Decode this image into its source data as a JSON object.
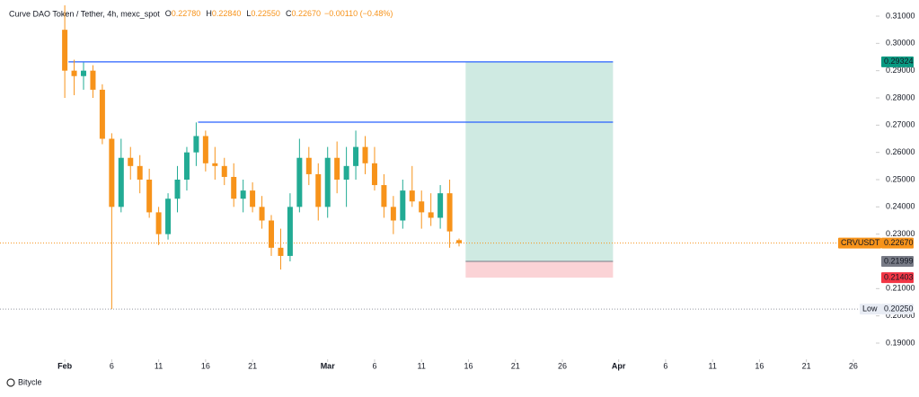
{
  "chart_data": {
    "type": "candlestick",
    "title": "Curve DAO Token / Tether, 4h, mexc_spot",
    "header_ohlc": {
      "labels": [
        "O",
        "H",
        "L",
        "C"
      ],
      "value_labels": [
        "0.22780",
        "0.22840",
        "0.22550",
        "0.22670"
      ],
      "values": [
        0.2278,
        0.2284,
        0.2255,
        0.2267
      ]
    },
    "change_label": "−0.00110 (−0.48%)",
    "up_color": "#22ab94",
    "down_color": "#f7931a",
    "x": [
      0,
      1,
      2,
      3,
      4,
      5,
      6,
      7,
      8,
      9,
      10,
      11,
      12,
      13,
      14,
      15,
      16,
      17,
      18,
      19,
      20,
      21,
      22,
      23,
      24,
      25,
      26,
      27,
      28,
      29,
      30,
      31,
      32,
      33,
      34,
      35,
      36,
      37,
      38,
      39,
      40,
      41,
      42
    ],
    "open": [
      0.305,
      0.29,
      0.288,
      0.29,
      0.283,
      0.265,
      0.24,
      0.258,
      0.255,
      0.25,
      0.238,
      0.23,
      0.243,
      0.25,
      0.26,
      0.266,
      0.256,
      0.255,
      0.251,
      0.243,
      0.246,
      0.24,
      0.235,
      0.225,
      0.222,
      0.24,
      0.258,
      0.252,
      0.24,
      0.258,
      0.25,
      0.255,
      0.262,
      0.256,
      0.248,
      0.24,
      0.235,
      0.246,
      0.242,
      0.238,
      0.236,
      0.245,
      0.2278
    ],
    "high": [
      0.314,
      0.294,
      0.293,
      0.292,
      0.285,
      0.267,
      0.265,
      0.262,
      0.259,
      0.254,
      0.24,
      0.245,
      0.255,
      0.262,
      0.271,
      0.268,
      0.262,
      0.258,
      0.256,
      0.25,
      0.249,
      0.244,
      0.237,
      0.232,
      0.245,
      0.265,
      0.262,
      0.256,
      0.262,
      0.264,
      0.262,
      0.268,
      0.266,
      0.262,
      0.252,
      0.244,
      0.25,
      0.255,
      0.246,
      0.245,
      0.248,
      0.25,
      0.2284
    ],
    "low": [
      0.28,
      0.281,
      0.283,
      0.28,
      0.263,
      0.2025,
      0.238,
      0.25,
      0.245,
      0.236,
      0.226,
      0.228,
      0.238,
      0.246,
      0.255,
      0.253,
      0.25,
      0.248,
      0.24,
      0.238,
      0.238,
      0.232,
      0.222,
      0.217,
      0.22,
      0.238,
      0.248,
      0.235,
      0.236,
      0.245,
      0.24,
      0.25,
      0.252,
      0.246,
      0.236,
      0.23,
      0.232,
      0.24,
      0.232,
      0.233,
      0.232,
      0.225,
      0.2255
    ],
    "close": [
      0.29,
      0.288,
      0.29,
      0.283,
      0.265,
      0.24,
      0.258,
      0.255,
      0.25,
      0.238,
      0.23,
      0.243,
      0.25,
      0.26,
      0.266,
      0.256,
      0.255,
      0.251,
      0.243,
      0.246,
      0.24,
      0.235,
      0.225,
      0.222,
      0.24,
      0.258,
      0.252,
      0.24,
      0.258,
      0.25,
      0.255,
      0.262,
      0.256,
      0.248,
      0.24,
      0.235,
      0.246,
      0.242,
      0.238,
      0.236,
      0.245,
      0.231,
      0.2267
    ],
    "xlim": [
      -6.9,
      86.4
    ],
    "ylim": [
      0.19,
      0.31
    ],
    "xticks": [
      {
        "value": 0,
        "label": "Feb"
      },
      {
        "value": 5,
        "label": "6"
      },
      {
        "value": 10,
        "label": "11"
      },
      {
        "value": 15,
        "label": "16"
      },
      {
        "value": 20,
        "label": "21"
      },
      {
        "value": 28,
        "label": "Mar"
      },
      {
        "value": 33,
        "label": "6"
      },
      {
        "value": 38,
        "label": "11"
      },
      {
        "value": 43,
        "label": "16"
      },
      {
        "value": 48,
        "label": "21"
      },
      {
        "value": 53,
        "label": "26"
      },
      {
        "value": 59,
        "label": "Apr"
      },
      {
        "value": 64,
        "label": "6"
      },
      {
        "value": 69,
        "label": "11"
      },
      {
        "value": 74,
        "label": "16"
      },
      {
        "value": 79,
        "label": "21"
      },
      {
        "value": 84,
        "label": "26"
      }
    ],
    "yticks": [
      {
        "value": 0.31,
        "label": "0.31000"
      },
      {
        "value": 0.3,
        "label": "0.30000"
      },
      {
        "value": 0.29,
        "label": "0.29000"
      },
      {
        "value": 0.28,
        "label": "0.28000"
      },
      {
        "value": 0.27,
        "label": "0.27000"
      },
      {
        "value": 0.26,
        "label": "0.26000"
      },
      {
        "value": 0.25,
        "label": "0.25000"
      },
      {
        "value": 0.24,
        "label": "0.24000"
      },
      {
        "value": 0.23,
        "label": "0.23000"
      },
      {
        "value": 0.21,
        "label": "0.21000"
      },
      {
        "value": 0.2,
        "label": "0.20000"
      },
      {
        "value": 0.19,
        "label": "0.19000"
      }
    ],
    "lines": [
      {
        "x": [
          0.4,
          58.4
        ],
        "y": 0.29324,
        "color": "#2962ff"
      },
      {
        "x": [
          14.2,
          58.4
        ],
        "y": 0.2711,
        "color": "#2962ff"
      }
    ],
    "position": {
      "x": [
        42.7,
        58.4
      ],
      "entry": 0.21999,
      "target": 0.29324,
      "stop": 0.21403,
      "profit_color": "#cfeae2",
      "loss_color": "#fbd3d6"
    },
    "price_labels": [
      {
        "value": 0.29324,
        "label": "0.29324",
        "color": "#089981",
        "text_color": "#ffffff"
      },
      {
        "value": 0.21999,
        "label": "0.21999",
        "color": "#787b86",
        "text_color": "#ffffff"
      },
      {
        "value": 0.21403,
        "label": "0.21403",
        "color": "#f23645",
        "text_color": "#ffffff"
      },
      {
        "value": 0.2267,
        "label": "0.22670",
        "name": "CRVUSDT",
        "color": "#f7931a",
        "text_color": "#ffffff",
        "dotted": true
      },
      {
        "value": 0.2025,
        "label": "0.20250",
        "name": "Low",
        "color": "#e8ecf4",
        "text_color": "#131722",
        "dotted": true
      }
    ],
    "footer": "Bitycle"
  }
}
